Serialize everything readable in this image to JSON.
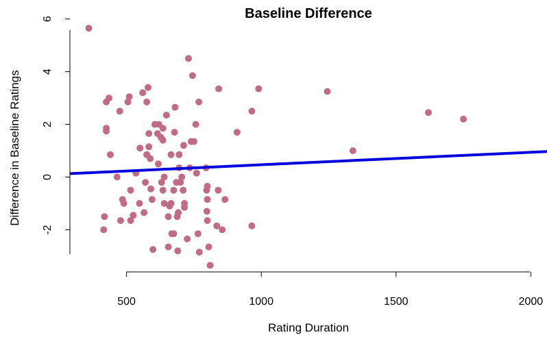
{
  "chart_data": {
    "type": "scatter",
    "title": "Baseline Difference",
    "xlabel": "Rating Duration",
    "ylabel": "Difference in Baseline Ratings",
    "xlim": [
      290,
      2060
    ],
    "ylim": [
      -3.6,
      6.2
    ],
    "xticks": [
      500,
      1000,
      1500,
      2000
    ],
    "yticks": [
      -2,
      0,
      2,
      4,
      6
    ],
    "point_color": "#c06c84",
    "line_color": "#0000dd",
    "regression_line": {
      "x": [
        290,
        2060
      ],
      "y": [
        0.13,
        0.97
      ]
    },
    "grid": false,
    "legend": "none",
    "points": [
      {
        "x": 360,
        "y": 5.65
      },
      {
        "x": 415,
        "y": -2.0
      },
      {
        "x": 418,
        "y": -1.5
      },
      {
        "x": 425,
        "y": 1.85
      },
      {
        "x": 425,
        "y": 1.75
      },
      {
        "x": 425,
        "y": 2.85
      },
      {
        "x": 435,
        "y": 3.0
      },
      {
        "x": 440,
        "y": 0.85
      },
      {
        "x": 465,
        "y": 0.0
      },
      {
        "x": 475,
        "y": 2.5
      },
      {
        "x": 478,
        "y": -1.65
      },
      {
        "x": 485,
        "y": -0.85
      },
      {
        "x": 490,
        "y": -1.0
      },
      {
        "x": 505,
        "y": 2.85
      },
      {
        "x": 510,
        "y": 3.05
      },
      {
        "x": 515,
        "y": -0.5
      },
      {
        "x": 515,
        "y": -1.65
      },
      {
        "x": 525,
        "y": -1.45
      },
      {
        "x": 535,
        "y": 0.15
      },
      {
        "x": 548,
        "y": -1.0
      },
      {
        "x": 550,
        "y": 1.1
      },
      {
        "x": 560,
        "y": 3.2
      },
      {
        "x": 565,
        "y": -1.35
      },
      {
        "x": 570,
        "y": -0.2
      },
      {
        "x": 575,
        "y": 2.85
      },
      {
        "x": 575,
        "y": 0.85
      },
      {
        "x": 580,
        "y": 3.4
      },
      {
        "x": 583,
        "y": 1.65
      },
      {
        "x": 583,
        "y": 1.15
      },
      {
        "x": 588,
        "y": 0.7
      },
      {
        "x": 590,
        "y": -0.45
      },
      {
        "x": 595,
        "y": -0.85
      },
      {
        "x": 598,
        "y": -2.75
      },
      {
        "x": 605,
        "y": 2.0
      },
      {
        "x": 620,
        "y": 2.0
      },
      {
        "x": 615,
        "y": 1.65
      },
      {
        "x": 618,
        "y": 0.5
      },
      {
        "x": 628,
        "y": 1.5
      },
      {
        "x": 635,
        "y": 1.4
      },
      {
        "x": 635,
        "y": 1.85
      },
      {
        "x": 630,
        "y": -0.2
      },
      {
        "x": 635,
        "y": -0.5
      },
      {
        "x": 640,
        "y": 0.0
      },
      {
        "x": 640,
        "y": -1.0
      },
      {
        "x": 648,
        "y": 2.35
      },
      {
        "x": 655,
        "y": -1.5
      },
      {
        "x": 655,
        "y": -2.65
      },
      {
        "x": 660,
        "y": -1.1
      },
      {
        "x": 665,
        "y": -1.0
      },
      {
        "x": 665,
        "y": 0.85
      },
      {
        "x": 668,
        "y": -2.15
      },
      {
        "x": 675,
        "y": -2.15
      },
      {
        "x": 675,
        "y": -0.5
      },
      {
        "x": 678,
        "y": 1.7
      },
      {
        "x": 680,
        "y": 2.65
      },
      {
        "x": 685,
        "y": -0.2
      },
      {
        "x": 688,
        "y": -1.5
      },
      {
        "x": 690,
        "y": -2.8
      },
      {
        "x": 692,
        "y": -1.35
      },
      {
        "x": 695,
        "y": 0.35
      },
      {
        "x": 695,
        "y": 0.85
      },
      {
        "x": 700,
        "y": -0.2
      },
      {
        "x": 705,
        "y": 0.0
      },
      {
        "x": 710,
        "y": -0.5
      },
      {
        "x": 712,
        "y": 1.2
      },
      {
        "x": 715,
        "y": -1.0
      },
      {
        "x": 715,
        "y": -1.15
      },
      {
        "x": 725,
        "y": -2.35
      },
      {
        "x": 730,
        "y": 4.5
      },
      {
        "x": 735,
        "y": 0.35
      },
      {
        "x": 740,
        "y": 1.35
      },
      {
        "x": 745,
        "y": 3.85
      },
      {
        "x": 750,
        "y": 1.35
      },
      {
        "x": 757,
        "y": 2.0
      },
      {
        "x": 760,
        "y": 0.15
      },
      {
        "x": 765,
        "y": -2.15
      },
      {
        "x": 768,
        "y": 2.85
      },
      {
        "x": 770,
        "y": -2.85
      },
      {
        "x": 795,
        "y": 0.35
      },
      {
        "x": 797,
        "y": -0.5
      },
      {
        "x": 800,
        "y": -0.35
      },
      {
        "x": 800,
        "y": -0.85
      },
      {
        "x": 798,
        "y": -1.3
      },
      {
        "x": 800,
        "y": -1.65
      },
      {
        "x": 805,
        "y": -2.65
      },
      {
        "x": 810,
        "y": -3.35
      },
      {
        "x": 835,
        "y": -1.85
      },
      {
        "x": 840,
        "y": -0.5
      },
      {
        "x": 842,
        "y": 3.35
      },
      {
        "x": 855,
        "y": -2.0
      },
      {
        "x": 865,
        "y": -0.85
      },
      {
        "x": 910,
        "y": 1.7
      },
      {
        "x": 965,
        "y": 2.5
      },
      {
        "x": 965,
        "y": -1.85
      },
      {
        "x": 990,
        "y": 3.35
      },
      {
        "x": 1245,
        "y": 3.25
      },
      {
        "x": 1340,
        "y": 1.0
      },
      {
        "x": 1620,
        "y": 2.45
      },
      {
        "x": 1750,
        "y": 2.2
      }
    ]
  }
}
